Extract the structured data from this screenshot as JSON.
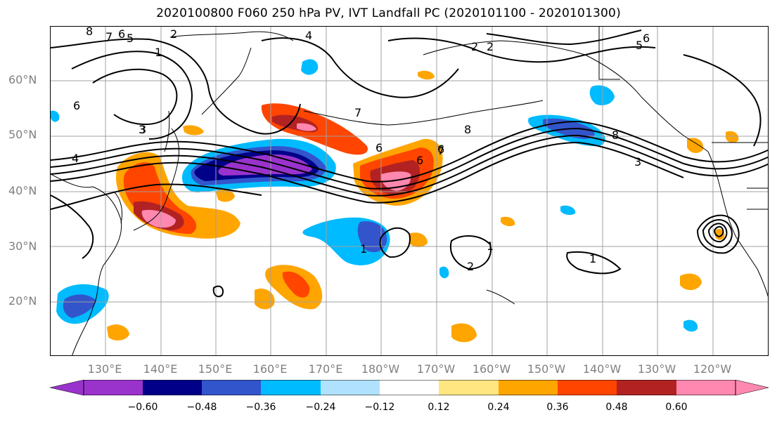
{
  "title": "2020100800 F060 250 hPa PV, IVT Landfall PC (2020101100 - 2020101300)",
  "lat_labels": [
    "60°N",
    "50°N",
    "40°N",
    "30°N",
    "20°N"
  ],
  "lon_labels": [
    "130°E",
    "140°E",
    "150°E",
    "160°E",
    "170°E",
    "180°W",
    "170°W",
    "160°W",
    "150°W",
    "140°W",
    "130°W",
    "120°W"
  ],
  "contour_labels": [
    "8",
    "7",
    "6",
    "5",
    "2",
    "1",
    "3",
    "4",
    "6",
    "3",
    "4",
    "7",
    "6",
    "8",
    "7",
    "6",
    "2",
    "1",
    "1",
    "2",
    "1",
    "6",
    "5",
    "2",
    "3",
    "8",
    "6"
  ],
  "colorbar": {
    "ticks": [
      "−0.60",
      "−0.48",
      "−0.36",
      "−0.24",
      "−0.12",
      "0.12",
      "0.24",
      "0.36",
      "0.48",
      "0.60"
    ],
    "colors": [
      "#9933cc",
      "#000088",
      "#3355cc",
      "#00bbff",
      "#b0e2ff",
      "#ffffff",
      "#ffe680",
      "#ffa500",
      "#ff4500",
      "#b22222",
      "#ff88b0",
      "#ff88b0"
    ]
  }
}
